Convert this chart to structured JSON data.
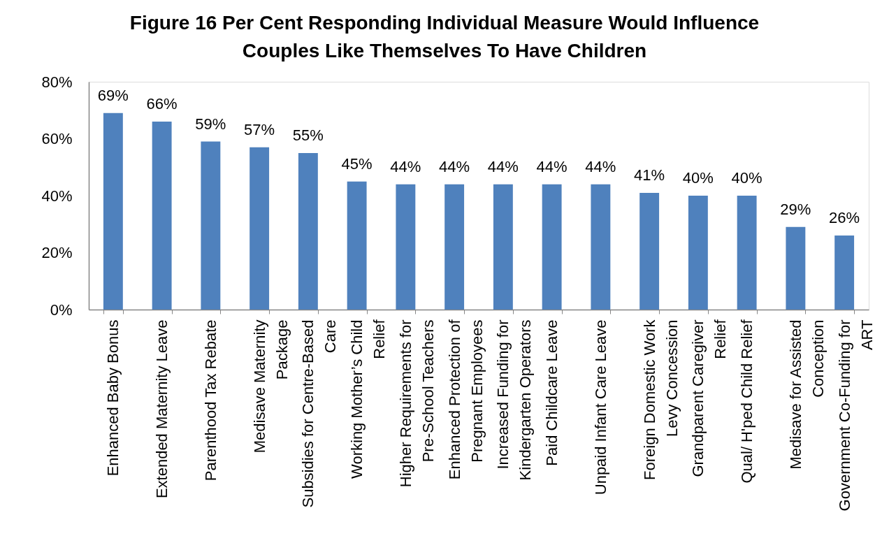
{
  "chart_data": {
    "type": "bar",
    "title": "Figure 16 Per Cent Responding Individual Measure Would Influence Couples Like Themselves To Have Children",
    "categories": [
      "Enhanced Baby Bonus",
      "Extended Maternity Leave",
      "Parenthood Tax Rebate",
      "Medisave Maternity Package",
      "Subsidies for Centre-Based Care",
      "Working Mother’s Child Relief",
      "Higher Requirements for Pre-School Teachers",
      "Enhanced Protection of Pregnant Employees",
      "Increased Funding for Kindergarten Operators",
      "Paid Childcare Leave",
      "Unpaid Infant Care Leave",
      "Foreign Domestic Work Levy Concession",
      "Grandparent Caregiver Relief",
      "Qual/ H'ped Child Relief",
      "Medisave for Assisted Conception",
      "Government Co-Funding for ART"
    ],
    "values": [
      69,
      66,
      59,
      57,
      55,
      45,
      44,
      44,
      44,
      44,
      44,
      41,
      40,
      40,
      29,
      26
    ],
    "value_labels": [
      "69%",
      "66%",
      "59%",
      "57%",
      "55%",
      "45%",
      "44%",
      "44%",
      "44%",
      "44%",
      "44%",
      "41%",
      "40%",
      "40%",
      "29%",
      "26%"
    ],
    "color": "#4f81bd",
    "ylim": [
      0,
      80
    ],
    "yticks": [
      {
        "value": 0,
        "label": "0%"
      },
      {
        "value": 20,
        "label": "20%"
      },
      {
        "value": 40,
        "label": "40%"
      },
      {
        "value": 60,
        "label": "60%"
      },
      {
        "value": 80,
        "label": "80%"
      }
    ]
  }
}
